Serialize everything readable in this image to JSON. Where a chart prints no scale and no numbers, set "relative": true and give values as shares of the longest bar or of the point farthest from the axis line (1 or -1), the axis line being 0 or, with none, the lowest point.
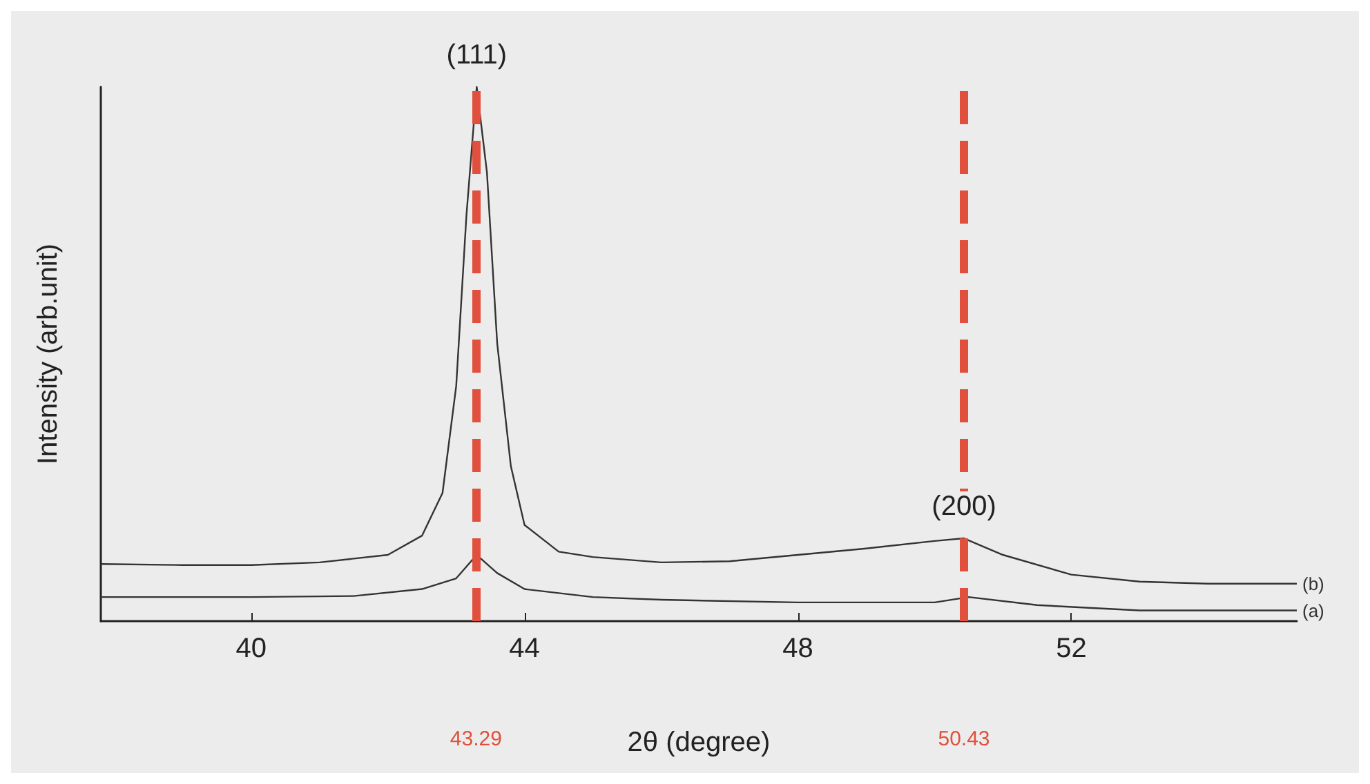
{
  "chart_data": {
    "type": "line",
    "relative": true,
    "xlabel": "2θ (degree)",
    "ylabel": "Intensity (arb.unit)",
    "xlim": [
      37.8,
      55.3
    ],
    "xticks": [
      40,
      44,
      48,
      52
    ],
    "grid": false,
    "legend": false,
    "marker": "none",
    "line_style": "solid",
    "series": [
      {
        "name": "(b)",
        "color": "#333333",
        "x": [
          37.8,
          39,
          40,
          41,
          42,
          42.5,
          42.8,
          43.0,
          43.15,
          43.3,
          43.45,
          43.6,
          43.8,
          44.0,
          44.5,
          45,
          46,
          47,
          48,
          49,
          50,
          50.43,
          51,
          52,
          53,
          54,
          55,
          55.3
        ],
        "values": [
          0.107,
          0.105,
          0.105,
          0.11,
          0.124,
          0.16,
          0.24,
          0.44,
          0.76,
          1.0,
          0.84,
          0.52,
          0.29,
          0.18,
          0.13,
          0.12,
          0.11,
          0.112,
          0.124,
          0.136,
          0.15,
          0.155,
          0.124,
          0.087,
          0.074,
          0.07,
          0.07,
          0.07
        ]
      },
      {
        "name": "(a)",
        "color": "#333333",
        "x": [
          37.8,
          40,
          41.5,
          42.5,
          43.0,
          43.3,
          43.6,
          44,
          45,
          46,
          48,
          50,
          50.5,
          51.5,
          53,
          55.3
        ],
        "values": [
          0.045,
          0.045,
          0.047,
          0.06,
          0.08,
          0.124,
          0.09,
          0.06,
          0.045,
          0.04,
          0.035,
          0.035,
          0.045,
          0.03,
          0.02,
          0.02
        ]
      }
    ],
    "ref_lines": [
      {
        "axis": "x",
        "value": 43.29,
        "label": "43.29",
        "color": "#e0503c",
        "line_style": "dashed"
      },
      {
        "axis": "x",
        "value": 50.43,
        "label": "50.43",
        "color": "#e0503c",
        "line_style": "dashed"
      }
    ],
    "annotations": [
      {
        "text": "(111)",
        "x": 43.3,
        "y": 1.0
      },
      {
        "text": "(200)",
        "x": 50.43,
        "y": 0.155
      }
    ]
  }
}
